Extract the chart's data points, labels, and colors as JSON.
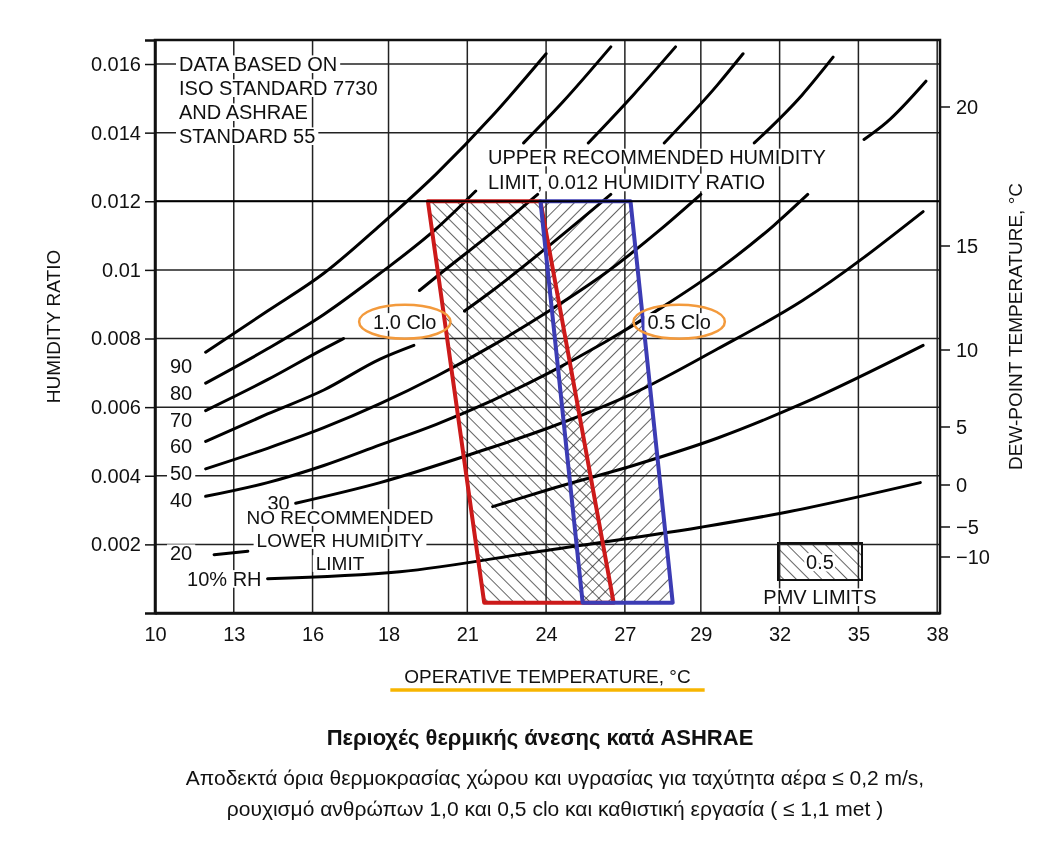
{
  "chart_data": {
    "type": "line",
    "title": "Περιοχές θερμικής άνεσης κατά ASHRAE",
    "subtitle": "Αποδεκτά όρια θερμοκρασίας χώρου και υγρασίας για ταχύτητα αέρα ≤ 0,2 m/s,\nρουχισμό ανθρώπων 1,0 και 0,5 clo και  καθιστική εργασία  ( ≤ 1,1 met )",
    "xlabel": "OPERATIVE TEMPERATURE, °C",
    "ylabel": "HUMIDITY RATIO",
    "y2label": "DEW-POINT TEMPERATURE, °C",
    "xlim": [
      10,
      37.9
    ],
    "xticks": [
      10,
      {
        "value": 12.8,
        "label": "13"
      },
      {
        "value": 15.6,
        "label": "16"
      },
      {
        "value": 18.3,
        "label": "18"
      },
      {
        "value": 21.1,
        "label": "21"
      },
      {
        "value": 23.9,
        "label": "24"
      },
      {
        "value": 26.7,
        "label": "27"
      },
      {
        "value": 29.4,
        "label": "29"
      },
      {
        "value": 32.2,
        "label": "32"
      },
      35,
      {
        "value": 37.8,
        "label": "38"
      }
    ],
    "ylim": [
      0,
      0.0167
    ],
    "yticks": [
      0.002,
      0.004,
      0.006,
      0.008,
      0.01,
      0.012,
      0.014,
      0.016
    ],
    "grid": true,
    "ref_lines": [
      {
        "axis": "y",
        "value": 0.012,
        "label": "UPPER RECOMMENDED HUMIDITY\nLIMIT, 0.012 HUMIDITY RATIO",
        "color": "#000000"
      }
    ],
    "annotations": [
      "DATA BASED ON\nISO STANDARD 7730\nAND ASHRAE\nSTANDARD 55",
      "NO RECOMMENDED\nLOWER HUMIDITY\nLIMIT",
      "0.5",
      "PMV LIMITS",
      "−10",
      "−5",
      "0",
      "5",
      "10",
      "15",
      "20"
    ],
    "series": [
      {
        "name": "90",
        "color": "#000000",
        "x": [
          11.8,
          14,
          16,
          18,
          20,
          22,
          23.9
        ],
        "values": [
          0.0076,
          0.0088,
          0.0099,
          0.0113,
          0.0128,
          0.0145,
          0.0163
        ]
      },
      {
        "name": "80",
        "color": "#000000",
        "x": [
          11.8,
          14,
          16,
          18,
          20,
          21.4,
          22.2,
          23.1,
          24.5,
          26.2
        ],
        "values": [
          0.0067,
          0.0077,
          0.0087,
          0.0099,
          0.0112,
          0.0123,
          null,
          0.0137,
          0.0149,
          0.0165
        ]
      },
      {
        "name": "70",
        "color": "#000000",
        "x": [
          11.8,
          14,
          16,
          16.7,
          17.9,
          19.4,
          20,
          22,
          23.6,
          24.5,
          25.4,
          27,
          28.5
        ],
        "values": [
          0.0059,
          0.0068,
          0.0077,
          0.008,
          null,
          0.0094,
          0.0098,
          0.0111,
          0.0122,
          null,
          0.0137,
          0.0151,
          0.0165
        ]
      },
      {
        "name": "60",
        "color": "#000000",
        "x": [
          11.8,
          14,
          16,
          18,
          19.2,
          20.1,
          21,
          22,
          24,
          26.2,
          27.2,
          28.1,
          30,
          30.9
        ],
        "values": [
          0.005,
          0.0058,
          0.0065,
          0.0074,
          0.0078,
          null,
          0.0088,
          0.0094,
          0.0107,
          0.0122,
          null,
          0.0137,
          0.0154,
          0.0163
        ]
      },
      {
        "name": "50",
        "color": "#000000",
        "x": [
          11.8,
          14,
          16,
          18,
          20,
          22,
          24,
          26,
          28,
          29.4,
          30.3,
          31.3,
          33,
          34.1
        ],
        "values": [
          0.0042,
          0.0048,
          0.0054,
          0.0061,
          0.0069,
          0.0078,
          0.0088,
          0.0099,
          0.0112,
          0.0122,
          null,
          0.0137,
          0.0151,
          0.0162
        ]
      },
      {
        "name": "40",
        "color": "#000000",
        "x": [
          11.8,
          14,
          16,
          18,
          20,
          22,
          24,
          26,
          28,
          30,
          32,
          33.2,
          34,
          35.2,
          36,
          37.4
        ],
        "values": [
          0.0034,
          0.0038,
          0.0043,
          0.0049,
          0.0055,
          0.0062,
          0.007,
          0.0079,
          0.0089,
          0.01,
          0.0113,
          0.0122,
          null,
          0.0138,
          0.0143,
          0.0155
        ]
      },
      {
        "name": "30",
        "color": "#000000",
        "x": [
          15,
          18,
          21.5,
          24,
          27,
          30,
          33,
          37.3
        ],
        "values": [
          0.0032,
          0.0038,
          0.0047,
          0.0054,
          0.0064,
          0.0077,
          0.0091,
          0.0117
        ]
      },
      {
        "name": "20",
        "color": "#000000",
        "x": [
          12.1,
          13.3,
          17,
          22,
          24,
          27,
          30,
          33,
          37.3
        ],
        "values": [
          0.0017,
          0.0018,
          null,
          0.0031,
          0.0036,
          0.0043,
          0.0051,
          0.0061,
          0.0078
        ]
      },
      {
        "name": "10% RH",
        "color": "#000000",
        "x": [
          14,
          18.7,
          23.7,
          29.4,
          32.2,
          37.2
        ],
        "values": [
          0.001,
          0.0012,
          0.0018,
          0.0025,
          0.0029,
          0.0038
        ]
      },
      {
        "name": "1.0 Clo",
        "type": "area",
        "color": "#cc1a1a",
        "x": [
          19.7,
          23.7,
          26.3,
          21.7,
          19.7
        ],
        "values": [
          0.012,
          0.012,
          0.0003,
          0.0003,
          0.012
        ]
      },
      {
        "name": "0.5 Clo",
        "type": "area",
        "color": "#3c3cb4",
        "x": [
          23.7,
          26.9,
          28.4,
          25.2,
          23.7
        ],
        "values": [
          0.012,
          0.012,
          0.0003,
          0.0003,
          0.012
        ]
      }
    ]
  }
}
